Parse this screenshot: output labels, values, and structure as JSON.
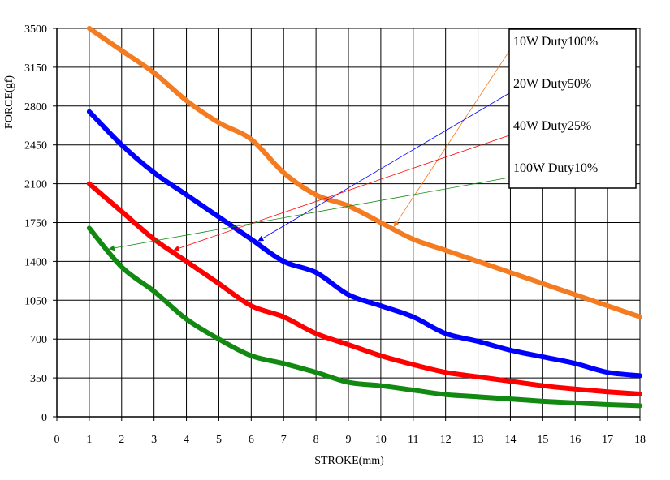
{
  "chart_data": {
    "type": "line",
    "title": "",
    "xlabel": "STROKE(mm)",
    "ylabel": "FORCE(gf)",
    "xlim": [
      0,
      18
    ],
    "ylim": [
      0,
      3500
    ],
    "xticks": [
      0,
      1,
      2,
      3,
      4,
      5,
      6,
      7,
      8,
      9,
      10,
      11,
      12,
      13,
      14,
      15,
      16,
      17,
      18
    ],
    "yticks": [
      0,
      350,
      700,
      1050,
      1400,
      1750,
      2100,
      2450,
      2800,
      3150,
      3500
    ],
    "grid": true,
    "legend_position": "top-right",
    "series": [
      {
        "name": "10W   Duty100%",
        "color": "#f47b20",
        "x": [
          1,
          2,
          3,
          4,
          5,
          6,
          7,
          8,
          9,
          10,
          11,
          12,
          13,
          14,
          15,
          16,
          17,
          18
        ],
        "values": [
          3500,
          3300,
          3100,
          2850,
          2650,
          2500,
          2200,
          2000,
          1900,
          1750,
          1600,
          1500,
          1400,
          1300,
          1200,
          1100,
          1000,
          900
        ]
      },
      {
        "name": "20W   Duty50%",
        "color": "#0000ff",
        "x": [
          1,
          2,
          3,
          4,
          5,
          6,
          7,
          8,
          9,
          10,
          11,
          12,
          13,
          14,
          15,
          16,
          17,
          18
        ],
        "values": [
          2750,
          2450,
          2200,
          2000,
          1800,
          1600,
          1400,
          1300,
          1100,
          1000,
          900,
          750,
          680,
          600,
          540,
          480,
          400,
          370
        ]
      },
      {
        "name": "40W   Duty25%",
        "color": "#ff0000",
        "x": [
          1,
          2,
          3,
          4,
          5,
          6,
          7,
          8,
          9,
          10,
          11,
          12,
          13,
          14,
          15,
          16,
          17,
          18
        ],
        "values": [
          2100,
          1850,
          1600,
          1400,
          1200,
          1000,
          900,
          750,
          650,
          550,
          470,
          400,
          360,
          320,
          280,
          250,
          225,
          205
        ]
      },
      {
        "name": "100W Duty10%",
        "color": "#128a12",
        "x": [
          1,
          2,
          3,
          4,
          5,
          6,
          7,
          8,
          9,
          10,
          11,
          12,
          13,
          14,
          15,
          16,
          17,
          18
        ],
        "values": [
          1700,
          1350,
          1130,
          880,
          700,
          550,
          480,
          400,
          310,
          280,
          240,
          200,
          180,
          160,
          140,
          125,
          110,
          100
        ]
      }
    ]
  }
}
